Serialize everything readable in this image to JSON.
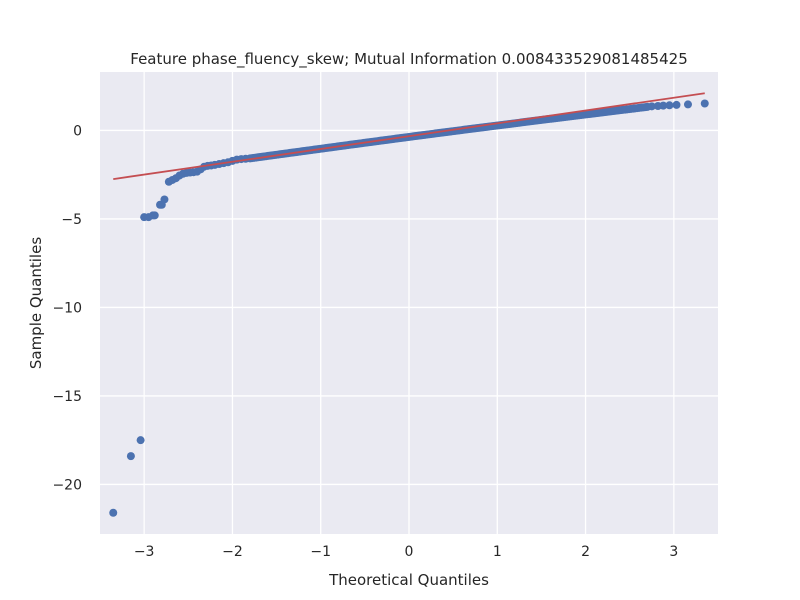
{
  "chart_data": {
    "type": "scatter",
    "title": "Feature phase_fluency_skew; Mutual Information 0.008433529081485425",
    "xlabel": "Theoretical Quantiles",
    "ylabel": "Sample Quantiles",
    "xlim": [
      -3.5,
      3.5
    ],
    "ylim": [
      -22.8,
      3.3
    ],
    "xticks": [
      -3,
      -2,
      -1,
      0,
      1,
      2,
      3
    ],
    "yticks": [
      0,
      -5,
      -10,
      -15,
      -20
    ],
    "xtick_labels": [
      "−3",
      "−2",
      "−1",
      "0",
      "1",
      "2",
      "3"
    ],
    "ytick_labels": [
      "0",
      "−5",
      "−10",
      "−15",
      "−20"
    ],
    "grid": true,
    "colors": {
      "background": "#eaeaf2",
      "grid": "#ffffff",
      "points": "#4c72b0",
      "line": "#c44e52"
    },
    "fit_line": {
      "x": [
        -3.35,
        3.35
      ],
      "y": [
        -2.75,
        2.1
      ]
    },
    "series": [
      {
        "points": [
          [
            -3.35,
            -21.6
          ],
          [
            -3.15,
            -18.4
          ],
          [
            -3.04,
            -17.5
          ],
          [
            -2.95,
            -4.9
          ],
          [
            -2.88,
            -4.8
          ],
          [
            -2.82,
            -4.2
          ],
          [
            -2.77,
            -3.9
          ],
          [
            -2.72,
            -2.9
          ],
          [
            -2.68,
            -2.8
          ],
          [
            -2.64,
            -2.7
          ],
          [
            -2.6,
            -2.55
          ],
          [
            -2.56,
            -2.45
          ],
          [
            -2.52,
            -2.4
          ],
          [
            -2.48,
            -2.38
          ],
          [
            -2.44,
            -2.36
          ],
          [
            -2.4,
            -2.33
          ],
          [
            -2.36,
            -2.2
          ],
          [
            -2.32,
            -2.05
          ],
          [
            -2.28,
            -2.0
          ],
          [
            -2.24,
            -1.98
          ],
          [
            -2.2,
            -1.95
          ],
          [
            -2.15,
            -1.9
          ],
          [
            -2.1,
            -1.85
          ],
          [
            -2.05,
            -1.8
          ],
          [
            -2.0,
            -1.72
          ],
          [
            -1.95,
            -1.65
          ],
          [
            -1.9,
            -1.62
          ],
          [
            -1.85,
            -1.6
          ],
          [
            -3.0,
            -4.9
          ],
          [
            -2.9,
            -4.8
          ],
          [
            -2.8,
            -4.2
          ]
        ],
        "dense_segment": {
          "x_start": -1.8,
          "x_end": 2.7,
          "count": 200,
          "y_start": -1.58,
          "y_end": 1.33
        },
        "tail_points": [
          [
            2.75,
            1.36
          ],
          [
            2.82,
            1.38
          ],
          [
            2.88,
            1.4
          ],
          [
            2.95,
            1.42
          ],
          [
            3.03,
            1.44
          ],
          [
            3.16,
            1.47
          ],
          [
            3.35,
            1.52
          ]
        ]
      }
    ]
  }
}
